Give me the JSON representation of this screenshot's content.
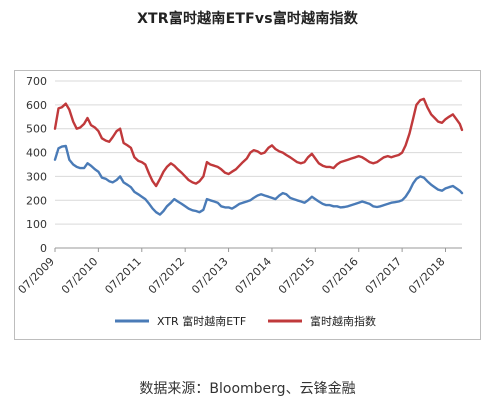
{
  "title": "XTR富时越南ETFvs富时越南指数",
  "source": "数据来源：Bloomberg、云锋金融",
  "chart_data": {
    "type": "line",
    "title": "XTR富时越南ETFvs富时越南指数",
    "ylim": [
      0,
      700
    ],
    "yticks": [
      0,
      100,
      200,
      300,
      400,
      500,
      600,
      700
    ],
    "xlim": [
      2009.5,
      2018.88
    ],
    "xticks": [
      {
        "value": 2009.5,
        "label": "07/2009"
      },
      {
        "value": 2010.5,
        "label": "07/2010"
      },
      {
        "value": 2011.5,
        "label": "07/2011"
      },
      {
        "value": 2012.5,
        "label": "07/2012"
      },
      {
        "value": 2013.5,
        "label": "07/2013"
      },
      {
        "value": 2014.5,
        "label": "07/2014"
      },
      {
        "value": 2015.5,
        "label": "07/2015"
      },
      {
        "value": 2016.5,
        "label": "07/2016"
      },
      {
        "value": 2017.5,
        "label": "07/2017"
      },
      {
        "value": 2018.5,
        "label": "07/2018"
      }
    ],
    "grid": {
      "horizontal": true,
      "vertical": false
    },
    "legend_position": "bottom",
    "series": [
      {
        "name": "XTR 富时越南ETF",
        "color": "#4a7bb7",
        "x": [
          2009.5,
          2009.58,
          2009.66,
          2009.75,
          2009.83,
          2009.92,
          2010.0,
          2010.08,
          2010.17,
          2010.25,
          2010.33,
          2010.42,
          2010.5,
          2010.58,
          2010.67,
          2010.75,
          2010.83,
          2010.92,
          2011.0,
          2011.08,
          2011.17,
          2011.25,
          2011.33,
          2011.42,
          2011.5,
          2011.58,
          2011.67,
          2011.75,
          2011.83,
          2011.92,
          2012.0,
          2012.08,
          2012.17,
          2012.25,
          2012.33,
          2012.42,
          2012.5,
          2012.58,
          2012.67,
          2012.75,
          2012.83,
          2012.92,
          2013.0,
          2013.08,
          2013.17,
          2013.25,
          2013.33,
          2013.42,
          2013.5,
          2013.58,
          2013.67,
          2013.75,
          2013.83,
          2013.92,
          2014.0,
          2014.08,
          2014.17,
          2014.25,
          2014.33,
          2014.42,
          2014.5,
          2014.58,
          2014.67,
          2014.75,
          2014.83,
          2014.92,
          2015.0,
          2015.08,
          2015.17,
          2015.25,
          2015.33,
          2015.42,
          2015.5,
          2015.58,
          2015.67,
          2015.75,
          2015.83,
          2015.92,
          2016.0,
          2016.08,
          2016.17,
          2016.25,
          2016.33,
          2016.42,
          2016.5,
          2016.58,
          2016.67,
          2016.75,
          2016.83,
          2016.92,
          2017.0,
          2017.08,
          2017.17,
          2017.25,
          2017.33,
          2017.42,
          2017.5,
          2017.58,
          2017.67,
          2017.75,
          2017.83,
          2017.92,
          2018.0,
          2018.08,
          2018.17,
          2018.25,
          2018.33,
          2018.42,
          2018.5,
          2018.58,
          2018.67,
          2018.75,
          2018.83,
          2018.88
        ],
        "values": [
          370,
          418,
          425,
          428,
          370,
          350,
          340,
          335,
          335,
          355,
          345,
          330,
          320,
          295,
          290,
          280,
          275,
          285,
          300,
          275,
          265,
          255,
          235,
          225,
          215,
          205,
          185,
          165,
          150,
          140,
          155,
          175,
          190,
          205,
          195,
          185,
          175,
          165,
          158,
          155,
          150,
          160,
          205,
          200,
          195,
          190,
          175,
          170,
          170,
          165,
          175,
          185,
          190,
          195,
          200,
          210,
          220,
          225,
          220,
          215,
          210,
          205,
          220,
          230,
          225,
          210,
          205,
          200,
          195,
          190,
          200,
          215,
          205,
          195,
          185,
          180,
          180,
          175,
          175,
          170,
          172,
          175,
          180,
          185,
          190,
          195,
          190,
          185,
          175,
          172,
          175,
          180,
          185,
          190,
          192,
          195,
          200,
          215,
          240,
          270,
          290,
          300,
          295,
          280,
          265,
          255,
          245,
          240,
          250,
          255,
          260,
          250,
          240,
          230
        ]
      },
      {
        "name": "富时越南指数",
        "color": "#c0393b",
        "x": [
          2009.5,
          2009.58,
          2009.66,
          2009.75,
          2009.83,
          2009.92,
          2010.0,
          2010.08,
          2010.17,
          2010.25,
          2010.33,
          2010.42,
          2010.5,
          2010.58,
          2010.67,
          2010.75,
          2010.83,
          2010.92,
          2011.0,
          2011.08,
          2011.17,
          2011.25,
          2011.33,
          2011.42,
          2011.5,
          2011.58,
          2011.67,
          2011.75,
          2011.83,
          2011.92,
          2012.0,
          2012.08,
          2012.17,
          2012.25,
          2012.33,
          2012.42,
          2012.5,
          2012.58,
          2012.67,
          2012.75,
          2012.83,
          2012.92,
          2013.0,
          2013.08,
          2013.17,
          2013.25,
          2013.33,
          2013.42,
          2013.5,
          2013.58,
          2013.67,
          2013.75,
          2013.83,
          2013.92,
          2014.0,
          2014.08,
          2014.17,
          2014.25,
          2014.33,
          2014.42,
          2014.5,
          2014.58,
          2014.67,
          2014.75,
          2014.83,
          2014.92,
          2015.0,
          2015.08,
          2015.17,
          2015.25,
          2015.33,
          2015.42,
          2015.5,
          2015.58,
          2015.67,
          2015.75,
          2015.83,
          2015.92,
          2016.0,
          2016.08,
          2016.17,
          2016.25,
          2016.33,
          2016.42,
          2016.5,
          2016.58,
          2016.67,
          2016.75,
          2016.83,
          2016.92,
          2017.0,
          2017.08,
          2017.17,
          2017.25,
          2017.33,
          2017.42,
          2017.5,
          2017.58,
          2017.67,
          2017.75,
          2017.83,
          2017.92,
          2018.0,
          2018.08,
          2018.17,
          2018.25,
          2018.33,
          2018.42,
          2018.5,
          2018.58,
          2018.67,
          2018.75,
          2018.83,
          2018.88
        ],
        "values": [
          500,
          585,
          590,
          605,
          580,
          530,
          500,
          505,
          520,
          545,
          515,
          505,
          490,
          460,
          450,
          445,
          465,
          490,
          500,
          440,
          430,
          420,
          380,
          365,
          360,
          350,
          310,
          280,
          260,
          290,
          320,
          340,
          355,
          345,
          330,
          315,
          300,
          285,
          275,
          270,
          280,
          300,
          360,
          350,
          345,
          340,
          330,
          315,
          310,
          320,
          330,
          345,
          360,
          375,
          400,
          410,
          405,
          395,
          400,
          420,
          430,
          415,
          405,
          400,
          390,
          380,
          370,
          360,
          355,
          360,
          380,
          395,
          375,
          355,
          345,
          340,
          340,
          335,
          350,
          360,
          365,
          370,
          375,
          380,
          385,
          380,
          370,
          360,
          355,
          360,
          370,
          380,
          385,
          380,
          385,
          390,
          400,
          430,
          480,
          540,
          600,
          620,
          625,
          590,
          560,
          545,
          530,
          525,
          540,
          550,
          560,
          540,
          520,
          495
        ]
      }
    ]
  }
}
